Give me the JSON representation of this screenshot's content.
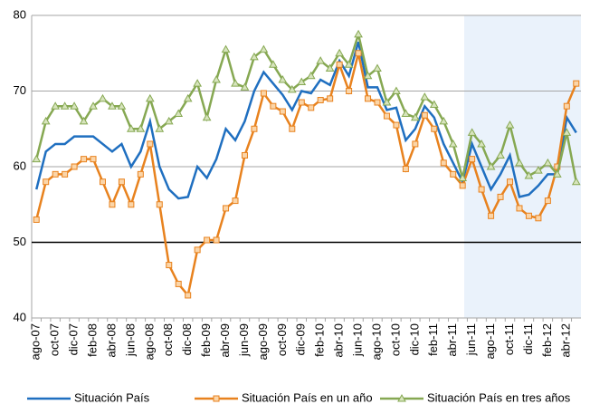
{
  "chart_data": {
    "type": "line",
    "categories": [
      "ago-07",
      null,
      "oct-07",
      null,
      "dic-07",
      null,
      "feb-08",
      null,
      "abr-08",
      null,
      "jun-08",
      null,
      "ago-08",
      null,
      "oct-08",
      null,
      "dic-08",
      null,
      "feb-09",
      null,
      "abr-09",
      null,
      "jun-09",
      null,
      "ago-09",
      null,
      "oct-09",
      null,
      "dic-09",
      null,
      "feb-10",
      null,
      "abr-10",
      null,
      "jun-10",
      null,
      "ago-10",
      null,
      "oct-10",
      null,
      "dic-10",
      null,
      "feb-11",
      null,
      "abr-11",
      null,
      "jun-11",
      null,
      "ago-11",
      null,
      "oct-11",
      null,
      "dic-11",
      null,
      "feb-12",
      null,
      "abr-12",
      null
    ],
    "series": [
      {
        "name": "Situación País",
        "color": "#1f6fc0",
        "marker": "none",
        "values": [
          57,
          62,
          63,
          63,
          64,
          64,
          64,
          63,
          62,
          63,
          60,
          62,
          66,
          60,
          57,
          55.8,
          56,
          60,
          58.5,
          61,
          65,
          63.5,
          66,
          70,
          72.5,
          71,
          69.5,
          67.5,
          70,
          69.7,
          71.5,
          70.8,
          74,
          72,
          76.5,
          70.5,
          70.5,
          67.5,
          67.8,
          63.5,
          65,
          68,
          66.5,
          63,
          60.5,
          58,
          63,
          60,
          57,
          59,
          61.5,
          56,
          56.3,
          57.5,
          59,
          59,
          66.5,
          64.5
        ]
      },
      {
        "name": "Situación País en un año",
        "color": "#e8821e",
        "marker": "square",
        "values": [
          53,
          58,
          59,
          59,
          60,
          61,
          61,
          58,
          55,
          58,
          55,
          59,
          63,
          55,
          47,
          44.5,
          43,
          49,
          50.3,
          50.3,
          54.5,
          55.5,
          61.5,
          65,
          69.7,
          68,
          67.3,
          65,
          68.5,
          67.8,
          68.8,
          69,
          73.5,
          70,
          75,
          69,
          68.5,
          66.7,
          65.5,
          59.7,
          63,
          66.8,
          65,
          60.5,
          59,
          57.5,
          61,
          57,
          53.5,
          56,
          58,
          54.5,
          53.5,
          53.2,
          55.5,
          60,
          68,
          71
        ]
      },
      {
        "name": "Situación País en tres años",
        "color": "#86a852",
        "marker": "triangle",
        "values": [
          61,
          66,
          68,
          68,
          68,
          66,
          68,
          69,
          68,
          68,
          65,
          65,
          69,
          65,
          66,
          67,
          69,
          71,
          66.5,
          71.5,
          75.5,
          71,
          70.5,
          74.5,
          75.5,
          73.5,
          71.5,
          70.2,
          71.2,
          72,
          74,
          73,
          75,
          73.5,
          77.5,
          72,
          73,
          68.5,
          70,
          67,
          66.5,
          69.2,
          68.2,
          66,
          63,
          58.5,
          64.5,
          63,
          60,
          61.5,
          65.5,
          60.5,
          58.8,
          59.5,
          60.5,
          59,
          64.5,
          58
        ]
      }
    ],
    "ylim": [
      40,
      80
    ],
    "yticks": [
      40,
      50,
      60,
      70,
      80
    ],
    "grid": true,
    "reference_line": 50,
    "legend": "bottom"
  }
}
